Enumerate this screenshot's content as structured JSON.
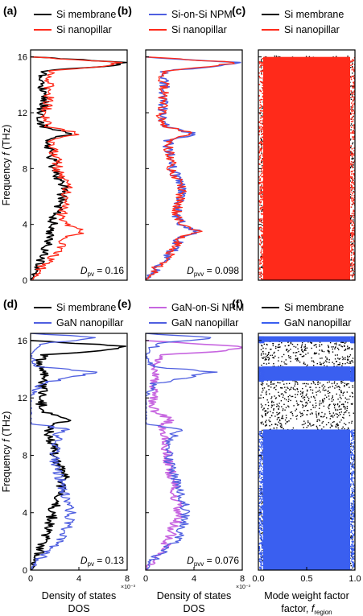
{
  "chart_data": [
    {
      "type": "line",
      "panel": "(a)",
      "orientation": "horizontal",
      "legend_position": "top",
      "ylabel": "Frequency f (THz)",
      "ylim": [
        0,
        16.5
      ],
      "yticks": [
        "0",
        "4",
        "8",
        "12",
        "16"
      ],
      "annotation": {
        "symbol": "D",
        "subscript": "pv",
        "value": "= 0.16"
      },
      "series": [
        {
          "name": "Si membrane",
          "color": "#000000",
          "f": [
            0,
            0.5,
            1,
            1.5,
            2,
            2.5,
            3,
            3.5,
            4,
            4.5,
            5,
            5.5,
            6,
            6.5,
            7,
            7.5,
            8,
            8.5,
            9,
            9.5,
            10,
            10.5,
            11,
            11.5,
            12,
            12.5,
            13,
            13.5,
            14,
            14.5,
            15,
            15.3,
            15.6,
            16
          ],
          "dos": [
            0,
            0.3,
            0.6,
            0.9,
            1.1,
            1.3,
            1.5,
            1.7,
            1.8,
            2.0,
            2.3,
            2.5,
            2.6,
            2.8,
            2.5,
            2.2,
            2.0,
            1.9,
            1.7,
            1.5,
            1.4,
            3.2,
            1.1,
            0.9,
            0.8,
            1.0,
            1.1,
            1.1,
            1.0,
            0.8,
            1.0,
            6.0,
            8.0,
            0
          ]
        },
        {
          "name": "Si nanopillar",
          "color": "#ff2a1a",
          "f": [
            0,
            0.5,
            1,
            1.5,
            2,
            2.5,
            3,
            3.5,
            4,
            4.5,
            5,
            5.5,
            6,
            6.5,
            7,
            7.5,
            8,
            8.5,
            9,
            9.5,
            10,
            10.5,
            11,
            11.5,
            12,
            12.5,
            13,
            13.5,
            14,
            14.5,
            15,
            15.3,
            15.6,
            16
          ],
          "dos": [
            0,
            0.6,
            1.0,
            1.6,
            2.2,
            2.6,
            2.8,
            4.5,
            3.0,
            2.6,
            2.6,
            2.8,
            2.9,
            3.1,
            2.8,
            2.5,
            2.2,
            2.2,
            2.0,
            1.9,
            1.8,
            4.0,
            1.6,
            1.3,
            1.3,
            1.4,
            1.5,
            1.5,
            1.6,
            1.4,
            1.6,
            5.5,
            7.5,
            0
          ]
        }
      ]
    },
    {
      "type": "line",
      "panel": "(b)",
      "orientation": "horizontal",
      "legend_position": "top",
      "ylim": [
        0,
        16.5
      ],
      "annotation": {
        "symbol": "D",
        "subscript": "pvv",
        "value": "= 0.098"
      },
      "series": [
        {
          "name": "Si-on-Si NPM",
          "color": "#4f5fe0",
          "f": [
            0,
            0.5,
            1,
            1.5,
            2,
            2.5,
            3,
            3.5,
            4,
            4.5,
            5,
            5.5,
            6,
            6.5,
            7,
            7.5,
            8,
            8.5,
            9,
            9.5,
            10,
            10.5,
            11,
            11.5,
            12,
            12.5,
            13,
            13.5,
            14,
            14.5,
            15,
            15.3,
            15.6,
            16
          ],
          "dos": [
            0,
            0.6,
            1.0,
            1.6,
            2.1,
            2.6,
            2.8,
            4.4,
            3.0,
            2.6,
            2.6,
            2.8,
            2.9,
            3.1,
            2.8,
            2.5,
            2.2,
            2.2,
            2.0,
            1.9,
            1.8,
            4.0,
            1.6,
            1.3,
            1.3,
            1.4,
            1.5,
            1.5,
            1.6,
            1.4,
            1.6,
            5.5,
            7.5,
            0
          ]
        },
        {
          "name": "Si nanopillar",
          "color": "#ff2a1a",
          "f": [
            0,
            0.5,
            1,
            1.5,
            2,
            2.5,
            3,
            3.5,
            4,
            4.5,
            5,
            5.5,
            6,
            6.5,
            7,
            7.5,
            8,
            8.5,
            9,
            9.5,
            10,
            10.5,
            11,
            11.5,
            12,
            12.5,
            13,
            13.5,
            14,
            14.5,
            15,
            15.3,
            15.6,
            16
          ],
          "dos": [
            0,
            0.6,
            1.0,
            1.6,
            2.2,
            2.6,
            2.8,
            4.5,
            3.0,
            2.6,
            2.6,
            2.8,
            2.9,
            3.1,
            2.8,
            2.5,
            2.2,
            2.2,
            2.0,
            1.9,
            1.8,
            4.0,
            1.6,
            1.3,
            1.3,
            1.4,
            1.5,
            1.5,
            1.6,
            1.4,
            1.6,
            5.5,
            7.5,
            0
          ]
        }
      ]
    },
    {
      "type": "scatter",
      "panel": "(c)",
      "legend_position": "top",
      "xlim": [
        0,
        1
      ],
      "ylim": [
        0,
        16.5
      ],
      "series": [
        {
          "name": "Si membrane",
          "color": "#000000"
        },
        {
          "name": "Si nanopillar",
          "color": "#ff2a1a"
        }
      ],
      "bands": [
        {
          "f_min": 0,
          "f_max": 16,
          "color": "#ff2a1a",
          "x_min": 0.05,
          "x_max": 0.95
        }
      ]
    },
    {
      "type": "line",
      "panel": "(d)",
      "orientation": "horizontal",
      "legend_position": "top",
      "ylabel": "Frequency f (THz)",
      "xlabel": "Density of states, DOS",
      "xlim": [
        0,
        8
      ],
      "xticks": [
        "0",
        "4",
        "8"
      ],
      "x_multiplier": "×10⁻³",
      "ylim": [
        0,
        16.5
      ],
      "yticks": [
        "0",
        "4",
        "8",
        "12",
        "16"
      ],
      "annotation": {
        "symbol": "D",
        "subscript": "pv",
        "value": "= 0.13"
      },
      "series": [
        {
          "name": "Si membrane",
          "color": "#000000",
          "f": [
            0,
            0.5,
            1,
            1.5,
            2,
            2.5,
            3,
            3.5,
            4,
            4.5,
            5,
            5.5,
            6,
            6.5,
            7,
            7.5,
            8,
            8.5,
            9,
            9.5,
            10,
            10.5,
            11,
            11.5,
            12,
            12.5,
            13,
            13.5,
            14,
            14.5,
            15,
            15.3,
            15.6,
            16
          ],
          "dos": [
            0,
            0.3,
            0.6,
            0.9,
            1.1,
            1.3,
            1.5,
            1.7,
            1.8,
            2.0,
            2.3,
            2.5,
            2.6,
            2.8,
            2.5,
            2.2,
            2.0,
            1.9,
            1.7,
            1.5,
            1.4,
            3.2,
            1.1,
            0.9,
            0.8,
            1.0,
            1.1,
            1.1,
            1.0,
            0.8,
            1.0,
            6.0,
            8.0,
            0
          ]
        },
        {
          "name": "GaN nanopillar",
          "color": "#4f5fe0",
          "f": [
            0,
            0.5,
            1,
            1.5,
            2,
            2.5,
            3,
            3.5,
            4,
            4.5,
            5,
            5.5,
            6,
            6.5,
            7,
            7.5,
            8,
            8.5,
            9,
            9.5,
            9.8,
            10.2,
            11,
            12,
            13,
            13.8,
            14.2,
            15,
            15.8,
            16.2,
            16.5
          ],
          "dos": [
            0,
            0.4,
            1.0,
            1.6,
            2.4,
            2.8,
            3.0,
            3.2,
            3.3,
            3.2,
            3.0,
            2.8,
            2.6,
            2.4,
            2.2,
            2.0,
            1.9,
            2.0,
            2.1,
            2.3,
            3.0,
            0,
            0,
            0,
            0.8,
            5.5,
            0.5,
            0,
            1.0,
            5.8,
            0
          ]
        }
      ]
    },
    {
      "type": "line",
      "panel": "(e)",
      "orientation": "horizontal",
      "legend_position": "top",
      "xlabel": "Density of states, DOS",
      "xlim": [
        0,
        8
      ],
      "xticks": [
        "0",
        "4",
        "8"
      ],
      "x_multiplier": "×10⁻³",
      "ylim": [
        0,
        16.5
      ],
      "annotation": {
        "symbol": "D",
        "subscript": "pvv",
        "value": "= 0.076"
      },
      "series": [
        {
          "name": "GaN-on-Si NPM",
          "color": "#c766e0",
          "f": [
            0,
            0.5,
            1,
            1.5,
            2,
            2.5,
            3,
            3.5,
            4,
            4.5,
            5,
            5.5,
            6,
            6.5,
            7,
            7.5,
            8,
            8.5,
            9,
            9.5,
            10,
            10.5,
            11,
            11.5,
            12,
            12.5,
            13,
            13.5,
            14,
            14.5,
            15,
            15.3,
            15.6,
            16
          ],
          "dos": [
            0,
            0.5,
            1.0,
            1.4,
            1.8,
            2.1,
            2.3,
            2.6,
            2.8,
            2.7,
            2.5,
            2.4,
            2.3,
            2.2,
            2.0,
            1.9,
            1.8,
            1.7,
            1.6,
            1.4,
            1.3,
            2.2,
            0.9,
            0.6,
            0.6,
            0.7,
            0.8,
            0.9,
            0.9,
            0.8,
            1.1,
            7.0,
            7.8,
            0
          ]
        },
        {
          "name": "GaN nanopillar",
          "color": "#4f5fe0",
          "f": [
            0,
            0.5,
            1,
            1.5,
            2,
            2.5,
            3,
            3.5,
            4,
            4.5,
            5,
            5.5,
            6,
            6.5,
            7,
            7.5,
            8,
            8.5,
            9,
            9.5,
            9.8,
            10.2,
            11,
            12,
            13,
            13.8,
            14.2,
            15,
            15.8,
            16.2,
            16.5
          ],
          "dos": [
            0,
            0.4,
            1.0,
            1.6,
            2.4,
            2.8,
            3.0,
            3.2,
            3.3,
            3.2,
            3.0,
            2.8,
            2.6,
            2.4,
            2.2,
            2.0,
            1.9,
            2.0,
            2.1,
            2.3,
            3.0,
            0,
            0,
            0,
            0.8,
            5.5,
            0.5,
            0,
            1.0,
            5.8,
            0
          ]
        }
      ]
    },
    {
      "type": "scatter",
      "panel": "(f)",
      "legend_position": "top",
      "xlabel": "Mode weight factor, f",
      "xlabel_subscript": "region",
      "xlim": [
        0,
        1
      ],
      "xticks": [
        "0.0",
        "0.5",
        "1.0"
      ],
      "ylim": [
        0,
        16.5
      ],
      "series": [
        {
          "name": "Si membrane",
          "color": "#000000"
        },
        {
          "name": "GaN nanopillar",
          "color": "#3a5ff0"
        }
      ],
      "bands": [
        {
          "f_min": 0,
          "f_max": 9.8,
          "color": "#3a5ff0",
          "x_min": 0.05,
          "x_max": 0.95
        },
        {
          "f_min": 13.2,
          "f_max": 14.2,
          "color": "#3a5ff0",
          "x_min": 0.05,
          "x_max": 0.95
        },
        {
          "f_min": 15.9,
          "f_max": 16.3,
          "color": "#3a5ff0",
          "x_min": 0.05,
          "x_max": 0.95
        }
      ]
    }
  ]
}
